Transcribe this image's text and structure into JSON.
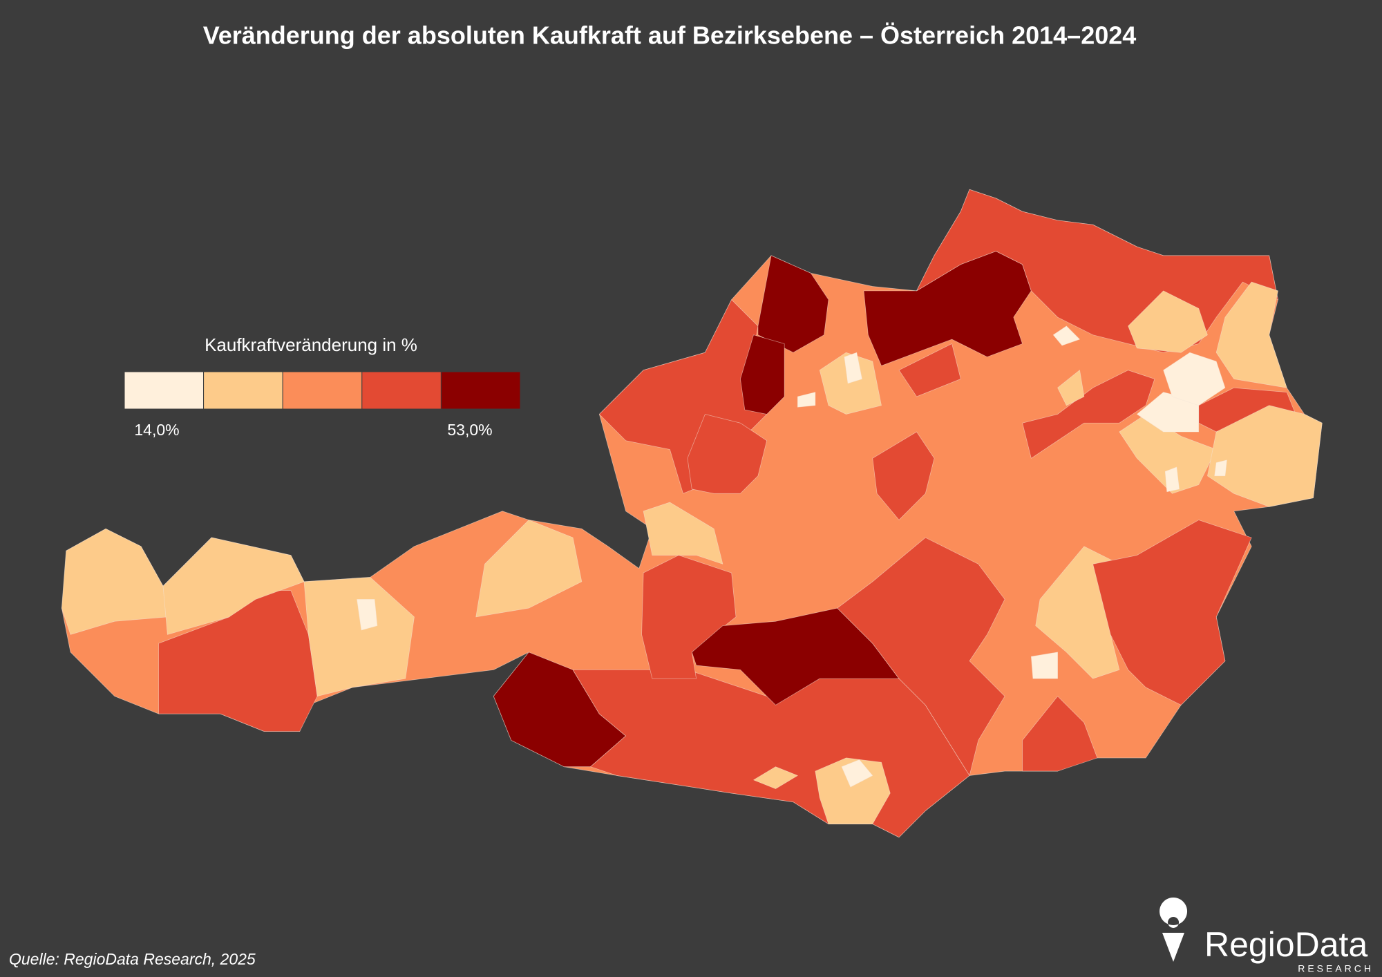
{
  "header": {
    "title": "Veränderung der absoluten Kaufkraft auf Bezirksebene – Österreich 2014–2024"
  },
  "legend": {
    "title": "Kaufkraftveränderung in %",
    "colors": [
      "#fff0dc",
      "#fdcb8a",
      "#fb8d59",
      "#e34a33",
      "#8b0000"
    ],
    "min_label": "14,0%",
    "max_label": "53,0%"
  },
  "footer": {
    "source": "Quelle: RegioData Research, 2025",
    "logo": "RegioData",
    "logo_subtitle": "RESEARCH"
  }
}
